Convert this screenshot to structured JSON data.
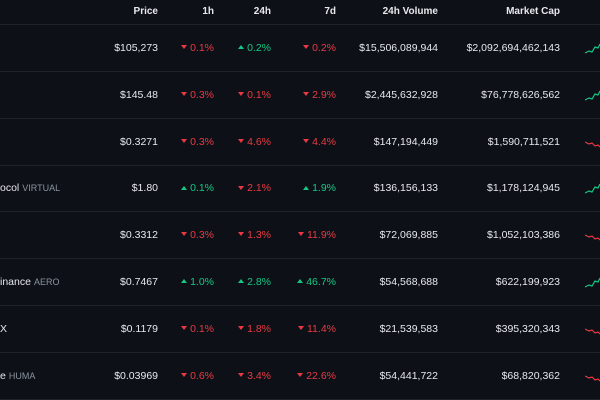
{
  "colors": {
    "background": "#0d1117",
    "text": "#e6e8ec",
    "muted": "#8b949e",
    "down": "#ea3943",
    "up": "#16c784",
    "divider": "#1f2329"
  },
  "header": {
    "price": "Price",
    "h1": "1h",
    "h24": "24h",
    "d7": "7d",
    "volume": "24h Volume",
    "market_cap": "Market Cap"
  },
  "rows": [
    {
      "name": "",
      "symbol": "",
      "price": "$105,273",
      "h1": {
        "value": "0.1%",
        "dir": "down"
      },
      "h24": {
        "value": "0.2%",
        "dir": "up"
      },
      "d7": {
        "value": "0.2%",
        "dir": "down"
      },
      "volume": "$15,506,089,944",
      "market_cap": "$2,092,694,462,143",
      "spark_trend": "up"
    },
    {
      "name": "",
      "symbol": "",
      "price": "$145.48",
      "h1": {
        "value": "0.3%",
        "dir": "down"
      },
      "h24": {
        "value": "0.1%",
        "dir": "down"
      },
      "d7": {
        "value": "2.9%",
        "dir": "down"
      },
      "volume": "$2,445,632,928",
      "market_cap": "$76,778,626,562",
      "spark_trend": "up"
    },
    {
      "name": "",
      "symbol": "",
      "price": "$0.3271",
      "h1": {
        "value": "0.3%",
        "dir": "down"
      },
      "h24": {
        "value": "4.6%",
        "dir": "down"
      },
      "d7": {
        "value": "4.4%",
        "dir": "down"
      },
      "volume": "$147,194,449",
      "market_cap": "$1,590,711,521",
      "spark_trend": "down"
    },
    {
      "name": "ocol",
      "symbol": "VIRTUAL",
      "price": "$1.80",
      "h1": {
        "value": "0.1%",
        "dir": "up"
      },
      "h24": {
        "value": "2.1%",
        "dir": "down"
      },
      "d7": {
        "value": "1.9%",
        "dir": "up"
      },
      "volume": "$136,156,133",
      "market_cap": "$1,178,124,945",
      "spark_trend": "up"
    },
    {
      "name": "",
      "symbol": "",
      "price": "$0.3312",
      "h1": {
        "value": "0.3%",
        "dir": "down"
      },
      "h24": {
        "value": "1.3%",
        "dir": "down"
      },
      "d7": {
        "value": "11.9%",
        "dir": "down"
      },
      "volume": "$72,069,885",
      "market_cap": "$1,052,103,386",
      "spark_trend": "down"
    },
    {
      "name": "inance",
      "symbol": "AERO",
      "price": "$0.7467",
      "h1": {
        "value": "1.0%",
        "dir": "up"
      },
      "h24": {
        "value": "2.8%",
        "dir": "up"
      },
      "d7": {
        "value": "46.7%",
        "dir": "up"
      },
      "volume": "$54,568,688",
      "market_cap": "$622,199,923",
      "spark_trend": "up"
    },
    {
      "name": "X",
      "symbol": "",
      "price": "$0.1179",
      "h1": {
        "value": "0.1%",
        "dir": "down"
      },
      "h24": {
        "value": "1.8%",
        "dir": "down"
      },
      "d7": {
        "value": "11.4%",
        "dir": "down"
      },
      "volume": "$21,539,583",
      "market_cap": "$395,320,343",
      "spark_trend": "down"
    },
    {
      "name": "e",
      "symbol": "HUMA",
      "price": "$0.03969",
      "h1": {
        "value": "0.6%",
        "dir": "down"
      },
      "h24": {
        "value": "3.4%",
        "dir": "down"
      },
      "d7": {
        "value": "22.6%",
        "dir": "down"
      },
      "volume": "$54,441,722",
      "market_cap": "$68,820,362",
      "spark_trend": "down"
    }
  ]
}
